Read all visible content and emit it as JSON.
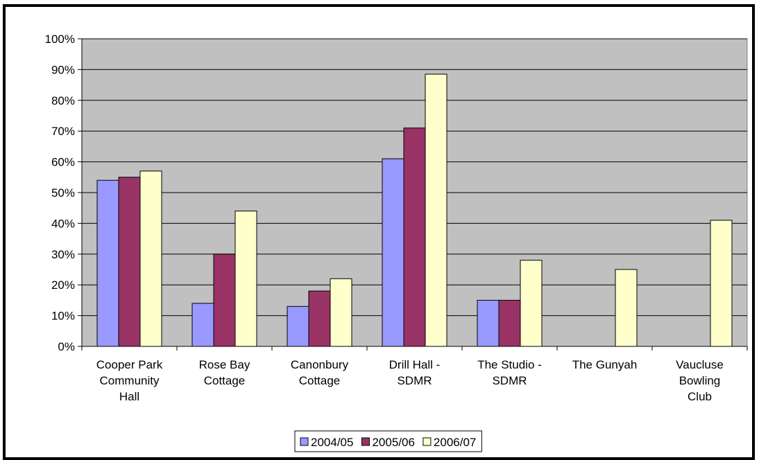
{
  "chart_data": {
    "type": "bar",
    "categories": [
      [
        "Cooper Park",
        "Community",
        "Hall"
      ],
      [
        "Rose Bay",
        "Cottage"
      ],
      [
        "Canonbury",
        "Cottage"
      ],
      [
        "Drill Hall -",
        "SDMR"
      ],
      [
        "The Studio -",
        "SDMR"
      ],
      [
        "The Gunyah"
      ],
      [
        "Vaucluse",
        "Bowling",
        "Club"
      ]
    ],
    "series": [
      {
        "name": "2004/05",
        "color": "#9999ff",
        "values": [
          54,
          14,
          13,
          61,
          15,
          null,
          null
        ]
      },
      {
        "name": "2005/06",
        "color": "#993366",
        "values": [
          55,
          30,
          18,
          71,
          15,
          null,
          null
        ]
      },
      {
        "name": "2006/07",
        "color": "#ffffcc",
        "values": [
          57,
          44,
          22,
          88.5,
          28,
          25,
          41
        ]
      }
    ],
    "y_ticks": [
      "0%",
      "10%",
      "20%",
      "30%",
      "40%",
      "50%",
      "60%",
      "70%",
      "80%",
      "90%",
      "100%"
    ],
    "ylim": [
      0,
      100
    ],
    "plot_background": "#c0c0c0",
    "grid": true,
    "legend_position": "bottom"
  }
}
